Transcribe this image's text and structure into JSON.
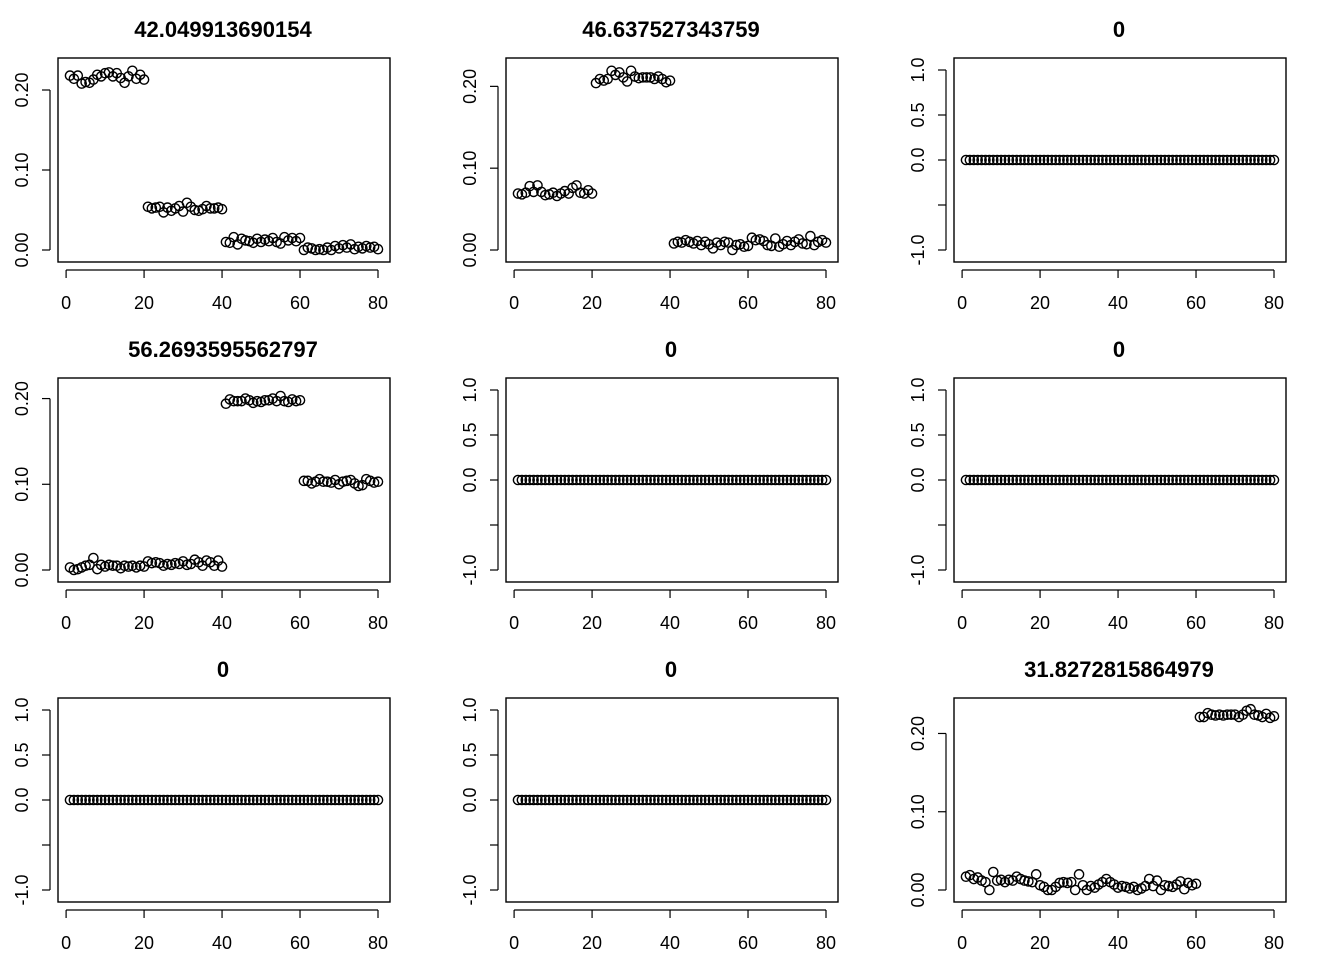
{
  "chart_data": [
    {
      "type": "scatter",
      "title": "42.049913690154",
      "x_ticks": [
        "0",
        "20",
        "40",
        "60",
        "80"
      ],
      "y_ticks": [
        "0.00",
        "0.10",
        "0.20"
      ],
      "xlim": [
        1,
        80
      ],
      "ylim": [
        0,
        0.225
      ],
      "x_start": 1,
      "y": [
        0.218,
        0.214,
        0.218,
        0.208,
        0.21,
        0.209,
        0.213,
        0.219,
        0.217,
        0.221,
        0.222,
        0.217,
        0.221,
        0.215,
        0.209,
        0.217,
        0.224,
        0.214,
        0.219,
        0.213,
        0.054,
        0.052,
        0.053,
        0.054,
        0.047,
        0.053,
        0.049,
        0.052,
        0.055,
        0.048,
        0.059,
        0.054,
        0.05,
        0.049,
        0.051,
        0.055,
        0.052,
        0.052,
        0.053,
        0.051,
        0.01,
        0.009,
        0.016,
        0.007,
        0.014,
        0.012,
        0.011,
        0.009,
        0.014,
        0.01,
        0.013,
        0.011,
        0.015,
        0.01,
        0.008,
        0.016,
        0.012,
        0.015,
        0.011,
        0.015,
        0.0,
        0.003,
        0.002,
        0.0,
        0.001,
        0.0,
        0.003,
        0.0,
        0.005,
        0.002,
        0.006,
        0.003,
        0.007,
        0.001,
        0.004,
        0.002,
        0.005,
        0.003,
        0.004,
        0.001
      ]
    },
    {
      "type": "scatter",
      "title": "46.637527343759",
      "x_ticks": [
        "0",
        "20",
        "40",
        "60",
        "80"
      ],
      "y_ticks": [
        "0.00",
        "0.10",
        "0.20"
      ],
      "xlim": [
        1,
        80
      ],
      "ylim": [
        0,
        0.22
      ],
      "x_start": 1,
      "y": [
        0.069,
        0.068,
        0.07,
        0.078,
        0.071,
        0.079,
        0.071,
        0.067,
        0.068,
        0.07,
        0.066,
        0.069,
        0.072,
        0.069,
        0.076,
        0.079,
        0.07,
        0.069,
        0.073,
        0.069,
        0.204,
        0.209,
        0.207,
        0.209,
        0.219,
        0.214,
        0.217,
        0.211,
        0.206,
        0.219,
        0.212,
        0.21,
        0.211,
        0.211,
        0.211,
        0.209,
        0.212,
        0.209,
        0.205,
        0.207,
        0.008,
        0.01,
        0.009,
        0.012,
        0.01,
        0.008,
        0.011,
        0.006,
        0.01,
        0.007,
        0.002,
        0.009,
        0.006,
        0.01,
        0.009,
        0.0,
        0.006,
        0.007,
        0.004,
        0.005,
        0.015,
        0.012,
        0.013,
        0.011,
        0.006,
        0.005,
        0.014,
        0.004,
        0.007,
        0.011,
        0.006,
        0.01,
        0.013,
        0.008,
        0.007,
        0.017,
        0.006,
        0.01,
        0.012,
        0.009
      ]
    },
    {
      "type": "scatter",
      "title": "0",
      "x_ticks": [
        "0",
        "20",
        "40",
        "60",
        "80"
      ],
      "y_ticks": [
        "-1.0",
        "0.0",
        "0.5",
        "1.0"
      ],
      "xlim": [
        1,
        80
      ],
      "ylim": [
        -1,
        1
      ],
      "x_start": 1,
      "y_constant": 0,
      "n": 80
    },
    {
      "type": "scatter",
      "title": "56.2693595562797",
      "x_ticks": [
        "0",
        "20",
        "40",
        "60",
        "80"
      ],
      "y_ticks": [
        "0.00",
        "0.10",
        "0.20"
      ],
      "xlim": [
        1,
        80
      ],
      "ylim": [
        0,
        0.21
      ],
      "x_start": 1,
      "y": [
        0.003,
        0.0,
        0.001,
        0.003,
        0.005,
        0.006,
        0.014,
        0.001,
        0.006,
        0.004,
        0.006,
        0.005,
        0.005,
        0.002,
        0.005,
        0.004,
        0.005,
        0.003,
        0.005,
        0.004,
        0.01,
        0.008,
        0.009,
        0.008,
        0.005,
        0.007,
        0.006,
        0.008,
        0.007,
        0.01,
        0.006,
        0.007,
        0.012,
        0.009,
        0.005,
        0.011,
        0.009,
        0.005,
        0.011,
        0.004,
        0.194,
        0.199,
        0.197,
        0.197,
        0.197,
        0.2,
        0.198,
        0.195,
        0.197,
        0.196,
        0.198,
        0.198,
        0.2,
        0.197,
        0.203,
        0.197,
        0.196,
        0.199,
        0.197,
        0.198,
        0.104,
        0.104,
        0.101,
        0.103,
        0.106,
        0.103,
        0.103,
        0.102,
        0.105,
        0.1,
        0.103,
        0.104,
        0.105,
        0.101,
        0.098,
        0.099,
        0.106,
        0.104,
        0.102,
        0.103
      ]
    },
    {
      "type": "scatter",
      "title": "0",
      "x_ticks": [
        "0",
        "20",
        "40",
        "60",
        "80"
      ],
      "y_ticks": [
        "-1.0",
        "0.0",
        "0.5",
        "1.0"
      ],
      "xlim": [
        1,
        80
      ],
      "ylim": [
        -1,
        1
      ],
      "x_start": 1,
      "y_constant": 0,
      "n": 80
    },
    {
      "type": "scatter",
      "title": "0",
      "x_ticks": [
        "0",
        "20",
        "40",
        "60",
        "80"
      ],
      "y_ticks": [
        "-1.0",
        "0.0",
        "0.5",
        "1.0"
      ],
      "xlim": [
        1,
        80
      ],
      "ylim": [
        -1,
        1
      ],
      "x_start": 1,
      "y_constant": 0,
      "n": 80
    },
    {
      "type": "scatter",
      "title": "0",
      "x_ticks": [
        "0",
        "20",
        "40",
        "60",
        "80"
      ],
      "y_ticks": [
        "-1.0",
        "0.0",
        "0.5",
        "1.0"
      ],
      "xlim": [
        1,
        80
      ],
      "ylim": [
        -1,
        1
      ],
      "x_start": 1,
      "y_constant": 0,
      "n": 80
    },
    {
      "type": "scatter",
      "title": "0",
      "x_ticks": [
        "0",
        "20",
        "40",
        "60",
        "80"
      ],
      "y_ticks": [
        "-1.0",
        "0.0",
        "0.5",
        "1.0"
      ],
      "xlim": [
        1,
        80
      ],
      "ylim": [
        -1,
        1
      ],
      "x_start": 1,
      "y_constant": 0,
      "n": 80
    },
    {
      "type": "scatter",
      "title": "31.8272815864979",
      "x_ticks": [
        "0",
        "20",
        "40",
        "60",
        "80"
      ],
      "y_ticks": [
        "0.00",
        "0.10",
        "0.20"
      ],
      "xlim": [
        1,
        80
      ],
      "ylim": [
        0,
        0.23
      ],
      "x_start": 1,
      "y": [
        0.017,
        0.019,
        0.014,
        0.016,
        0.012,
        0.01,
        0.0,
        0.023,
        0.012,
        0.013,
        0.01,
        0.013,
        0.012,
        0.017,
        0.014,
        0.012,
        0.011,
        0.01,
        0.02,
        0.006,
        0.004,
        0.0,
        0.0,
        0.004,
        0.009,
        0.01,
        0.009,
        0.01,
        0.0,
        0.02,
        0.006,
        0.0,
        0.005,
        0.003,
        0.007,
        0.01,
        0.014,
        0.01,
        0.007,
        0.003,
        0.005,
        0.004,
        0.002,
        0.004,
        0.0,
        0.002,
        0.005,
        0.014,
        0.005,
        0.012,
        0.0,
        0.006,
        0.005,
        0.004,
        0.007,
        0.011,
        0.001,
        0.009,
        0.006,
        0.008,
        0.221,
        0.221,
        0.226,
        0.224,
        0.223,
        0.224,
        0.223,
        0.224,
        0.224,
        0.224,
        0.221,
        0.224,
        0.229,
        0.231,
        0.224,
        0.223,
        0.221,
        0.225,
        0.22,
        0.222
      ]
    }
  ]
}
